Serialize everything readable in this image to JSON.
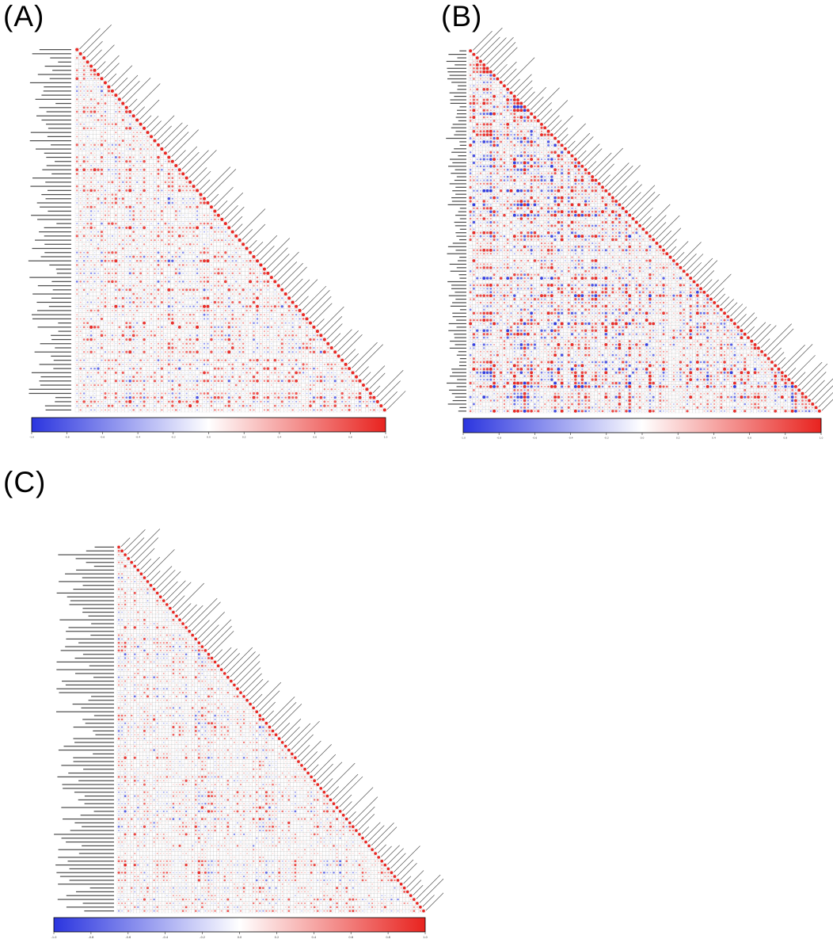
{
  "figure": {
    "background": "#ffffff",
    "panels": [
      {
        "label": "(A)"
      },
      {
        "label": "(B)"
      },
      {
        "label": "(C)"
      }
    ],
    "colorbar": {
      "min": -1,
      "max": 1,
      "ticks": [
        -1,
        -0.8,
        -0.6,
        -0.4,
        -0.2,
        0,
        0.2,
        0.4,
        0.6,
        0.8,
        1
      ],
      "negative_color": "#2b35df",
      "midpoint_color": "#ffffff",
      "positive_color": "#e8231f"
    }
  },
  "chart_data": [
    {
      "type": "heatmap",
      "subtype": "correlogram_lower_triangle",
      "panel": "(A)",
      "n_variables": 88,
      "cell_glyph": "sized_colored_circle",
      "value_range": [
        -1,
        1
      ],
      "colormap": [
        "#2b35df",
        "#ffffff",
        "#e8231f"
      ],
      "colorbar_ticks": [
        -1,
        -0.8,
        -0.6,
        -0.4,
        -0.2,
        0,
        0.2,
        0.4,
        0.6,
        0.8,
        1
      ],
      "legend_position": "bottom",
      "variable_labels": "row labels at left, column labels rotated 45deg along the diagonal; text too small to be legible",
      "values": "individual correlation values not legible at source resolution; mostly weak-to-moderate positive (red) with scattered negative (blue) clusters"
    },
    {
      "type": "heatmap",
      "subtype": "correlogram_lower_triangle",
      "panel": "(B)",
      "n_variables": 104,
      "cell_glyph": "sized_colored_circle",
      "value_range": [
        -1,
        1
      ],
      "colormap": [
        "#2b35df",
        "#ffffff",
        "#e8231f"
      ],
      "colorbar_ticks": [
        -1,
        -0.8,
        -0.6,
        -0.4,
        -0.2,
        0,
        0.2,
        0.4,
        0.6,
        0.8,
        1
      ],
      "legend_position": "bottom",
      "variable_labels": "row labels at left, column labels rotated 45deg along the diagonal; text too small to be legible",
      "values": "individual correlation values not legible at source resolution; denser and stronger red/blue blocks than panel (A)"
    },
    {
      "type": "heatmap",
      "subtype": "correlogram_lower_triangle",
      "panel": "(C)",
      "n_variables": 96,
      "cell_glyph": "sized_colored_circle",
      "value_range": [
        -1,
        1
      ],
      "colormap": [
        "#2b35df",
        "#ffffff",
        "#e8231f"
      ],
      "colorbar_ticks": [
        -1,
        -0.8,
        -0.6,
        -0.4,
        -0.2,
        0,
        0.2,
        0.4,
        0.6,
        0.8,
        1
      ],
      "legend_position": "bottom",
      "variable_labels": "long metabolite-style row labels at left, column labels rotated 45deg along the diagonal; text too small to be legible",
      "values": "individual correlation values not legible at source resolution; mostly pale positive correlations with sparse strong red and blue dots"
    }
  ]
}
